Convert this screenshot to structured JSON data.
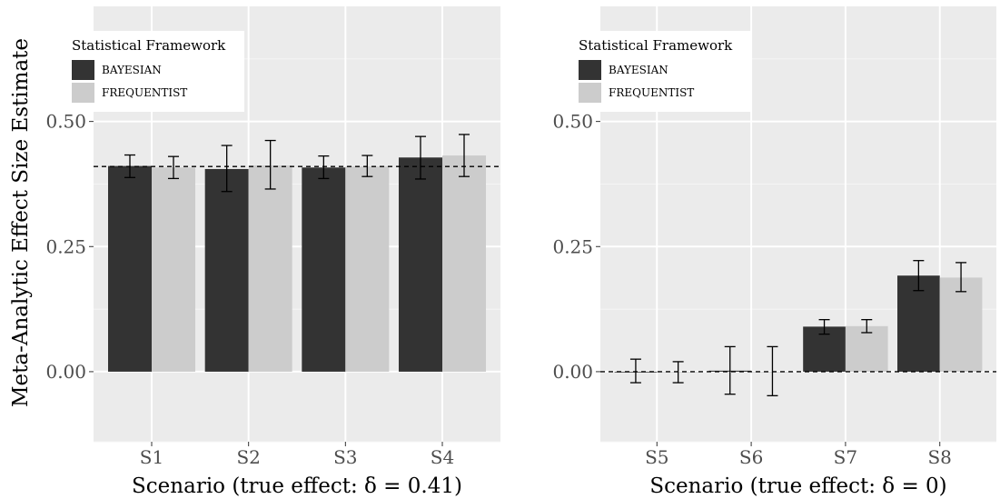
{
  "ylabel": "Meta-Analytic Effect Size Estimate",
  "legend": {
    "title": "Statistical Framework",
    "placement": "top-left",
    "items": [
      {
        "label": "BAYESIAN",
        "color": "#333333"
      },
      {
        "label": "FREQUENTIST",
        "color": "#cccccc"
      }
    ]
  },
  "colors": {
    "panel": "#ebebeb",
    "grid_major": "#ffffff",
    "grid_minor": "#f5f5f5",
    "bayesian": "#333333",
    "frequentist": "#cccccc"
  },
  "chart_data": [
    {
      "type": "bar",
      "xlabel": "Scenario (true effect: δ = 0.41)",
      "ylabel": "Meta-Analytic Effect Size Estimate",
      "categories": [
        "S1",
        "S2",
        "S3",
        "S4"
      ],
      "ylim": [
        -0.14,
        0.73
      ],
      "yticks": [
        0.0,
        0.25,
        0.5
      ],
      "ytick_labels": [
        "0.00",
        "0.25",
        "0.50"
      ],
      "reference_line": 0.41,
      "grid": true,
      "series": [
        {
          "name": "BAYESIAN",
          "values": [
            0.411,
            0.405,
            0.408,
            0.428
          ],
          "lower": [
            0.388,
            0.36,
            0.386,
            0.385
          ],
          "upper": [
            0.433,
            0.452,
            0.431,
            0.47
          ]
        },
        {
          "name": "FREQUENTIST",
          "values": [
            0.408,
            0.412,
            0.41,
            0.432
          ],
          "lower": [
            0.386,
            0.365,
            0.39,
            0.39
          ],
          "upper": [
            0.43,
            0.462,
            0.432,
            0.474
          ]
        }
      ]
    },
    {
      "type": "bar",
      "xlabel": "Scenario (true effect: δ = 0)",
      "ylabel": "",
      "categories": [
        "S5",
        "S6",
        "S7",
        "S8"
      ],
      "ylim": [
        -0.14,
        0.73
      ],
      "yticks": [
        0.0,
        0.25,
        0.5
      ],
      "ytick_labels": [
        "0.00",
        "0.25",
        "0.50"
      ],
      "reference_line": 0.0,
      "grid": true,
      "series": [
        {
          "name": "BAYESIAN",
          "values": [
            0.0,
            0.002,
            0.09,
            0.192
          ],
          "lower": [
            -0.022,
            -0.045,
            0.075,
            0.162
          ],
          "upper": [
            0.025,
            0.05,
            0.104,
            0.222
          ]
        },
        {
          "name": "FREQUENTIST",
          "values": [
            0.0,
            0.0,
            0.091,
            0.188
          ],
          "lower": [
            -0.022,
            -0.048,
            0.078,
            0.16
          ],
          "upper": [
            0.02,
            0.05,
            0.104,
            0.218
          ]
        }
      ]
    }
  ]
}
